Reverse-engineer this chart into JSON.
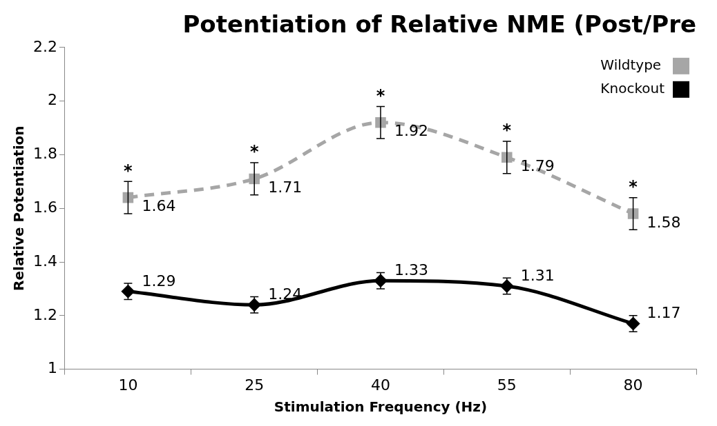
{
  "chart_data": {
    "type": "line",
    "title": "Potentiation of Relative NME (Post/Pre",
    "xlabel": "Stimulation Frequency (Hz)",
    "ylabel": "Relative Potentiation",
    "categories": [
      "10",
      "25",
      "40",
      "55",
      "80"
    ],
    "series": [
      {
        "name": "Wildtype",
        "color": "#a6a6a6",
        "values": [
          1.64,
          1.71,
          1.92,
          1.79,
          1.58
        ],
        "errors": [
          0.06,
          0.06,
          0.06,
          0.06,
          0.06
        ],
        "marker": "square",
        "line_style": "dashed"
      },
      {
        "name": "Knockout",
        "color": "#000000",
        "values": [
          1.29,
          1.24,
          1.33,
          1.31,
          1.17
        ],
        "errors": [
          0.03,
          0.03,
          0.03,
          0.03,
          0.03
        ],
        "marker": "diamond",
        "line_style": "solid"
      }
    ],
    "ylim": [
      1,
      2.2
    ],
    "yticks": [
      1,
      1.2,
      1.4,
      1.6,
      1.8,
      2,
      2.2
    ],
    "grid": false,
    "legend": "top right",
    "data_labels": true,
    "annotations": [
      "*",
      "*",
      "*",
      "*",
      "*"
    ]
  }
}
